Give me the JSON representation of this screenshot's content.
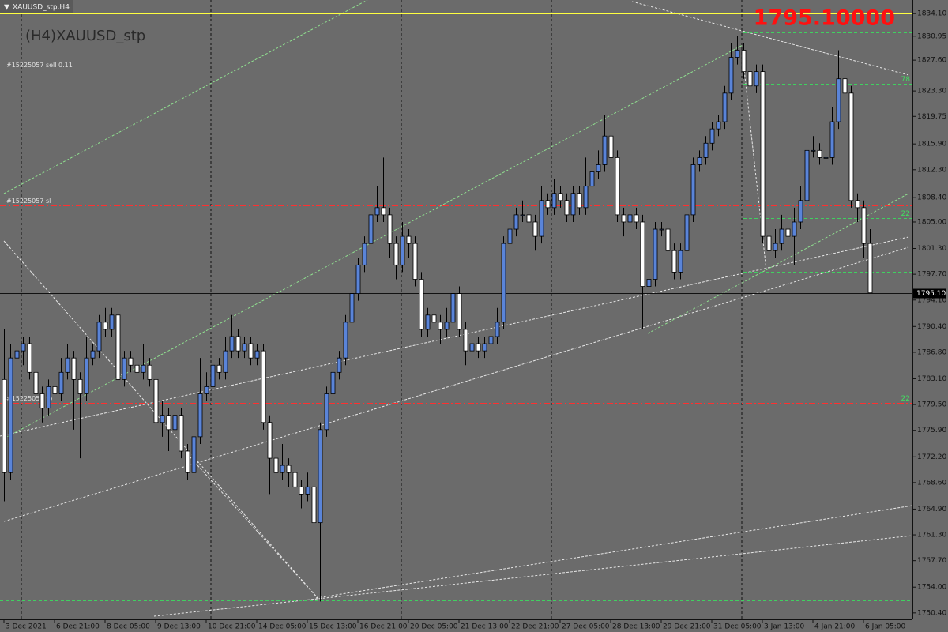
{
  "chart_data": {
    "type": "candlestick",
    "window_title": "XAUUSD_stp.H4",
    "title": "(H4)XAUUSD_stp",
    "price_display": "1795.10000",
    "current_price": {
      "value": 1795.1,
      "label": "1795.10"
    },
    "colors": {
      "up": "#5a84d8",
      "down": "#ffffff"
    },
    "ylim": [
      1749.5,
      1836.0
    ],
    "yticks": [
      {
        "value": 1834.1,
        "label": "1834.10"
      },
      {
        "value": 1830.95,
        "label": "1830.95"
      },
      {
        "value": 1827.6,
        "label": "1827.60"
      },
      {
        "value": 1823.3,
        "label": "1823.30"
      },
      {
        "value": 1819.75,
        "label": "1819.75"
      },
      {
        "value": 1815.9,
        "label": "1815.90"
      },
      {
        "value": 1812.3,
        "label": "1812.30"
      },
      {
        "value": 1808.4,
        "label": "1808.40"
      },
      {
        "value": 1805.0,
        "label": "1805.00"
      },
      {
        "value": 1801.3,
        "label": "1801.30"
      },
      {
        "value": 1797.7,
        "label": "1797.70"
      },
      {
        "value": 1794.1,
        "label": "1794.10"
      },
      {
        "value": 1790.4,
        "label": "1790.40"
      },
      {
        "value": 1786.8,
        "label": "1786.80"
      },
      {
        "value": 1783.1,
        "label": "1783.10"
      },
      {
        "value": 1779.5,
        "label": "1779.50"
      },
      {
        "value": 1775.9,
        "label": "1775.90"
      },
      {
        "value": 1772.2,
        "label": "1772.20"
      },
      {
        "value": 1768.6,
        "label": "1768.60"
      },
      {
        "value": 1764.9,
        "label": "1764.90"
      },
      {
        "value": 1761.3,
        "label": "1761.30"
      },
      {
        "value": 1757.7,
        "label": "1757.70"
      },
      {
        "value": 1754.0,
        "label": "1754.00"
      },
      {
        "value": 1750.4,
        "label": "1750.40"
      }
    ],
    "levels": [
      {
        "value": 1834.1,
        "color": "#ffff40",
        "dash": "none"
      },
      {
        "value": 1826.3,
        "color": "#c8c8c8",
        "dash": "8 3 2 3",
        "label": "#15225057 sell 0.11"
      },
      {
        "value": 1807.3,
        "color": "#ff3030",
        "dash": "8 3 2 3",
        "label": "#15225057 sl"
      },
      {
        "value": 1779.7,
        "color": "#ff3030",
        "dash": "8 3 2 3",
        "label": "#15225057 tp",
        "right_label": "22"
      },
      {
        "value": 1831.5,
        "color": "#40d060",
        "dash": "4 3",
        "from": 117
      },
      {
        "value": 1824.3,
        "color": "#40d060",
        "dash": "4 3",
        "from": 117,
        "right_label": "78"
      },
      {
        "value": 1805.6,
        "color": "#40d060",
        "dash": "4 3",
        "from": 117,
        "right_label": "22"
      },
      {
        "value": 1798.1,
        "color": "#40d060",
        "dash": "4 3",
        "from": 117
      },
      {
        "value": 1752.2,
        "color": "#40d060",
        "dash": "4 3"
      }
    ],
    "x": [
      "3 Dec 2021",
      null,
      null,
      null,
      null,
      null,
      null,
      null,
      "6 Dec 21:00",
      null,
      null,
      null,
      null,
      null,
      null,
      null,
      "8 Dec 05:00",
      null,
      null,
      null,
      null,
      null,
      null,
      null,
      "9 Dec 13:00",
      null,
      null,
      null,
      null,
      null,
      null,
      null,
      "10 Dec 21:00",
      null,
      null,
      null,
      null,
      null,
      null,
      null,
      "14 Dec 05:00",
      null,
      null,
      null,
      null,
      null,
      null,
      null,
      "15 Dec 13:00",
      null,
      null,
      null,
      null,
      null,
      null,
      null,
      "16 Dec 21:00",
      null,
      null,
      null,
      null,
      null,
      null,
      null,
      "20 Dec 05:00",
      null,
      null,
      null,
      null,
      null,
      null,
      null,
      "21 Dec 13:00",
      null,
      null,
      null,
      null,
      null,
      null,
      null,
      "22 Dec 21:00",
      null,
      null,
      null,
      null,
      null,
      null,
      null,
      "27 Dec 05:00",
      null,
      null,
      null,
      null,
      null,
      null,
      null,
      "28 Dec 13:00",
      null,
      null,
      null,
      null,
      null,
      null,
      null,
      "29 Dec 21:00",
      null,
      null,
      null,
      null,
      null,
      null,
      null,
      "31 Dec 05:00",
      null,
      null,
      null,
      null,
      null,
      null,
      null,
      "3 Jan 13:00",
      null,
      null,
      null,
      null,
      null,
      null,
      null,
      "4 Jan 21:00",
      null,
      null,
      null,
      null,
      null,
      null,
      null,
      "6 Jan 05:00",
      null
    ],
    "candles": [
      [
        1783,
        1790,
        1766,
        1770
      ],
      [
        1770,
        1788,
        1769,
        1786
      ],
      [
        1786,
        1789,
        1784,
        1787
      ],
      [
        1787,
        1789,
        1785,
        1788
      ],
      [
        1788,
        1789,
        1783,
        1784
      ],
      [
        1784,
        1785,
        1778,
        1781
      ],
      [
        1781,
        1782,
        1777,
        1779
      ],
      [
        1779,
        1783,
        1778,
        1782
      ],
      [
        1782,
        1783,
        1779,
        1781
      ],
      [
        1781,
        1786,
        1780,
        1784
      ],
      [
        1784,
        1788,
        1783,
        1786
      ],
      [
        1786,
        1787,
        1776,
        1783
      ],
      [
        1783,
        1784,
        1772,
        1781
      ],
      [
        1781,
        1789,
        1780,
        1786
      ],
      [
        1786,
        1788,
        1785,
        1787
      ],
      [
        1787,
        1792,
        1786,
        1791
      ],
      [
        1791,
        1793,
        1789,
        1790
      ],
      [
        1790,
        1793,
        1789,
        1792
      ],
      [
        1792,
        1793,
        1782,
        1783
      ],
      [
        1783,
        1787,
        1782,
        1786
      ],
      [
        1786,
        1787,
        1784,
        1785
      ],
      [
        1785,
        1786,
        1783,
        1784
      ],
      [
        1784,
        1788,
        1783,
        1785
      ],
      [
        1785,
        1786,
        1782,
        1783
      ],
      [
        1783,
        1784,
        1776,
        1777
      ],
      [
        1777,
        1780,
        1775,
        1778
      ],
      [
        1778,
        1779,
        1773,
        1776
      ],
      [
        1776,
        1780,
        1775,
        1778
      ],
      [
        1778,
        1779,
        1772,
        1773
      ],
      [
        1773,
        1774,
        1769,
        1770
      ],
      [
        1770,
        1778,
        1769,
        1775
      ],
      [
        1775,
        1786,
        1774,
        1781
      ],
      [
        1781,
        1784,
        1780,
        1782
      ],
      [
        1782,
        1786,
        1781,
        1785
      ],
      [
        1785,
        1786,
        1783,
        1784
      ],
      [
        1784,
        1789,
        1783,
        1787
      ],
      [
        1787,
        1792,
        1786,
        1789
      ],
      [
        1789,
        1790,
        1786,
        1787
      ],
      [
        1787,
        1789,
        1786,
        1788
      ],
      [
        1788,
        1789,
        1785,
        1786
      ],
      [
        1786,
        1788,
        1785,
        1787
      ],
      [
        1787,
        1788,
        1776,
        1777
      ],
      [
        1777,
        1778,
        1767,
        1772
      ],
      [
        1772,
        1773,
        1768,
        1770
      ],
      [
        1770,
        1774,
        1769,
        1771
      ],
      [
        1771,
        1772,
        1768,
        1770
      ],
      [
        1770,
        1771,
        1767,
        1768
      ],
      [
        1768,
        1769,
        1765,
        1767
      ],
      [
        1767,
        1770,
        1766,
        1768
      ],
      [
        1768,
        1769,
        1759,
        1763
      ],
      [
        1763,
        1777,
        1752,
        1776
      ],
      [
        1776,
        1782,
        1775,
        1781
      ],
      [
        1781,
        1785,
        1780,
        1784
      ],
      [
        1784,
        1787,
        1783,
        1786
      ],
      [
        1786,
        1792,
        1785,
        1791
      ],
      [
        1791,
        1796,
        1790,
        1795
      ],
      [
        1795,
        1800,
        1794,
        1799
      ],
      [
        1799,
        1803,
        1798,
        1802
      ],
      [
        1802,
        1809,
        1801,
        1806
      ],
      [
        1806,
        1810,
        1805,
        1807
      ],
      [
        1807,
        1814,
        1805,
        1806
      ],
      [
        1806,
        1807,
        1800,
        1802
      ],
      [
        1802,
        1803,
        1797,
        1799
      ],
      [
        1799,
        1805,
        1798,
        1803
      ],
      [
        1803,
        1804,
        1800,
        1802
      ],
      [
        1802,
        1803,
        1796,
        1797
      ],
      [
        1797,
        1798,
        1789,
        1790
      ],
      [
        1790,
        1793,
        1789,
        1792
      ],
      [
        1792,
        1793,
        1790,
        1791
      ],
      [
        1791,
        1792,
        1788,
        1790
      ],
      [
        1790,
        1793,
        1789,
        1791
      ],
      [
        1791,
        1799,
        1790,
        1795
      ],
      [
        1795,
        1796,
        1789,
        1790
      ],
      [
        1790,
        1791,
        1785,
        1787
      ],
      [
        1787,
        1789,
        1786,
        1788
      ],
      [
        1788,
        1789,
        1786,
        1787
      ],
      [
        1787,
        1789,
        1786,
        1788
      ],
      [
        1788,
        1790,
        1786,
        1789
      ],
      [
        1789,
        1793,
        1788,
        1791
      ],
      [
        1791,
        1803,
        1790,
        1802
      ],
      [
        1802,
        1805,
        1801,
        1804
      ],
      [
        1804,
        1807,
        1803,
        1806
      ],
      [
        1806,
        1808,
        1805,
        1806
      ],
      [
        1806,
        1807,
        1804,
        1805
      ],
      [
        1805,
        1806,
        1801,
        1803
      ],
      [
        1803,
        1810,
        1802,
        1808
      ],
      [
        1808,
        1809,
        1806,
        1807
      ],
      [
        1807,
        1811,
        1806,
        1809
      ],
      [
        1809,
        1810,
        1807,
        1808
      ],
      [
        1808,
        1809,
        1805,
        1806
      ],
      [
        1806,
        1810,
        1805,
        1809
      ],
      [
        1809,
        1810,
        1806,
        1807
      ],
      [
        1807,
        1814,
        1806,
        1810
      ],
      [
        1810,
        1814,
        1809,
        1812
      ],
      [
        1812,
        1815,
        1811,
        1813
      ],
      [
        1813,
        1820,
        1812,
        1817
      ],
      [
        1817,
        1821,
        1813,
        1814
      ],
      [
        1814,
        1815,
        1805,
        1806
      ],
      [
        1806,
        1807,
        1803,
        1805
      ],
      [
        1805,
        1807,
        1804,
        1806
      ],
      [
        1806,
        1807,
        1804,
        1805
      ],
      [
        1805,
        1806,
        1790,
        1796
      ],
      [
        1796,
        1798,
        1794,
        1797
      ],
      [
        1797,
        1805,
        1796,
        1804
      ],
      [
        1804,
        1805,
        1803,
        1804
      ],
      [
        1804,
        1805,
        1800,
        1801
      ],
      [
        1801,
        1802,
        1797,
        1798
      ],
      [
        1798,
        1802,
        1797,
        1801
      ],
      [
        1801,
        1807,
        1800,
        1806
      ],
      [
        1806,
        1814,
        1805,
        1813
      ],
      [
        1813,
        1815,
        1812,
        1814
      ],
      [
        1814,
        1817,
        1813,
        1816
      ],
      [
        1816,
        1819,
        1815,
        1818
      ],
      [
        1818,
        1820,
        1817,
        1819
      ],
      [
        1819,
        1824,
        1818,
        1823
      ],
      [
        1823,
        1830,
        1822,
        1828
      ],
      [
        1828,
        1831,
        1827,
        1829
      ],
      [
        1829,
        1830,
        1825,
        1826
      ],
      [
        1826,
        1827,
        1822,
        1824
      ],
      [
        1824,
        1827,
        1823,
        1826
      ],
      [
        1826,
        1827,
        1802,
        1803
      ],
      [
        1803,
        1804,
        1798,
        1801
      ],
      [
        1801,
        1804,
        1800,
        1802
      ],
      [
        1802,
        1806,
        1801,
        1804
      ],
      [
        1804,
        1806,
        1801,
        1803
      ],
      [
        1803,
        1807,
        1799,
        1805
      ],
      [
        1805,
        1810,
        1804,
        1808
      ],
      [
        1808,
        1817,
        1807,
        1815
      ],
      [
        1815,
        1817,
        1814,
        1815
      ],
      [
        1815,
        1816,
        1813,
        1814
      ],
      [
        1814,
        1816,
        1812,
        1814
      ],
      [
        1814,
        1821,
        1813,
        1819
      ],
      [
        1819,
        1829,
        1818,
        1825
      ],
      [
        1825,
        1826,
        1822,
        1823
      ],
      [
        1823,
        1824,
        1807,
        1808
      ],
      [
        1808,
        1809,
        1805,
        1807
      ],
      [
        1807,
        1808,
        1800,
        1802
      ],
      [
        1802,
        1804,
        1795.1,
        1795.1
      ]
    ]
  }
}
